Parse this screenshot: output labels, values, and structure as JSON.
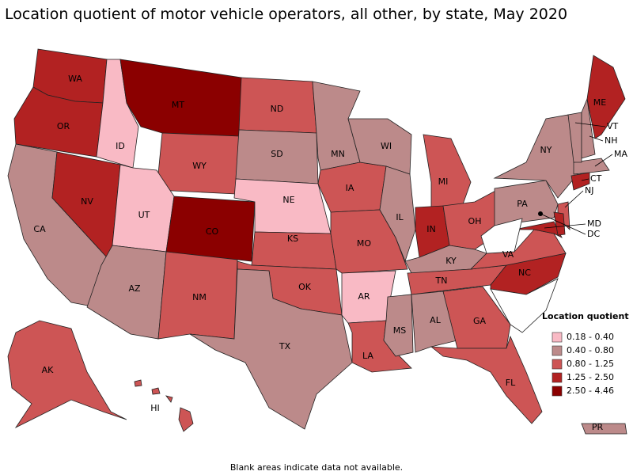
{
  "title": "Location quotient of motor vehicle operators, all other, by state, May 2020",
  "states": [
    {
      "label": "WA",
      "color": "#b22222"
    },
    {
      "label": "OR",
      "color": "#b22222"
    },
    {
      "label": "CA",
      "color": "#bc8a8a"
    },
    {
      "label": "NV",
      "color": "#b22222"
    },
    {
      "label": "ID",
      "color": "#f9bac5"
    },
    {
      "label": "MT",
      "color": "#8b0000"
    },
    {
      "label": "WY",
      "color": "#cd5555"
    },
    {
      "label": "UT",
      "color": "#f9bac5"
    },
    {
      "label": "CO",
      "color": "#8b0000"
    },
    {
      "label": "AZ",
      "color": "#bc8a8a"
    },
    {
      "label": "NM",
      "color": "#cd5555"
    },
    {
      "label": "ND",
      "color": "#cd5555"
    },
    {
      "label": "SD",
      "color": "#bc8a8a"
    },
    {
      "label": "NE",
      "color": "#f9bac5"
    },
    {
      "label": "KS",
      "color": "#cd5555"
    },
    {
      "label": "OK",
      "color": "#cd5555"
    },
    {
      "label": "TX",
      "color": "#bc8a8a"
    },
    {
      "label": "MN",
      "color": "#bc8a8a"
    },
    {
      "label": "IA",
      "color": "#cd5555"
    },
    {
      "label": "MO",
      "color": "#cd5555"
    },
    {
      "label": "AR",
      "color": "#f9bac5"
    },
    {
      "label": "LA",
      "color": "#cd5555"
    },
    {
      "label": "WI",
      "color": "#bc8a8a"
    },
    {
      "label": "IL",
      "color": "#bc8a8a"
    },
    {
      "label": "MI",
      "color": "#cd5555"
    },
    {
      "label": "IN",
      "color": "#b22222"
    },
    {
      "label": "OH",
      "color": "#cd5555"
    },
    {
      "label": "KY",
      "color": "#bc8a8a"
    },
    {
      "label": "TN",
      "color": "#cd5555"
    },
    {
      "label": "MS",
      "color": "#bc8a8a"
    },
    {
      "label": "AL",
      "color": "#bc8a8a"
    },
    {
      "label": "GA",
      "color": "#cd5555"
    },
    {
      "label": "FL",
      "color": "#cd5555"
    },
    {
      "label": "NC",
      "color": "#b22222"
    },
    {
      "label": "VA",
      "color": "#cd5555"
    },
    {
      "label": "MD",
      "color": "#b22222"
    },
    {
      "label": "DC",
      "color": "#000000"
    },
    {
      "label": "PA",
      "color": "#bc8a8a"
    },
    {
      "label": "NY",
      "color": "#bc8a8a"
    },
    {
      "label": "NJ",
      "color": "#cd5555"
    },
    {
      "label": "CT",
      "color": "#b22222"
    },
    {
      "label": "MA",
      "color": "#bc8a8a"
    },
    {
      "label": "VT",
      "color": "#bc8a8a"
    },
    {
      "label": "NH",
      "color": "#bc8a8a"
    },
    {
      "label": "ME",
      "color": "#b22222"
    },
    {
      "label": "AK",
      "color": "#cd5555"
    },
    {
      "label": "HI",
      "color": "#cd5555"
    },
    {
      "label": "PR",
      "color": "#bc8a8a"
    }
  ],
  "legend": {
    "title": "Location quotient",
    "entries": [
      {
        "label": "0.18 - 0.40",
        "color": "#f9bac5"
      },
      {
        "label": "0.40 - 0.80",
        "color": "#bc8a8a"
      },
      {
        "label": "0.80 - 1.25",
        "color": "#cd5555"
      },
      {
        "label": "1.25 - 2.50",
        "color": "#b22222"
      },
      {
        "label": "2.50 - 4.46",
        "color": "#8b0000"
      }
    ]
  },
  "footnote": "Blank areas indicate data not available."
}
